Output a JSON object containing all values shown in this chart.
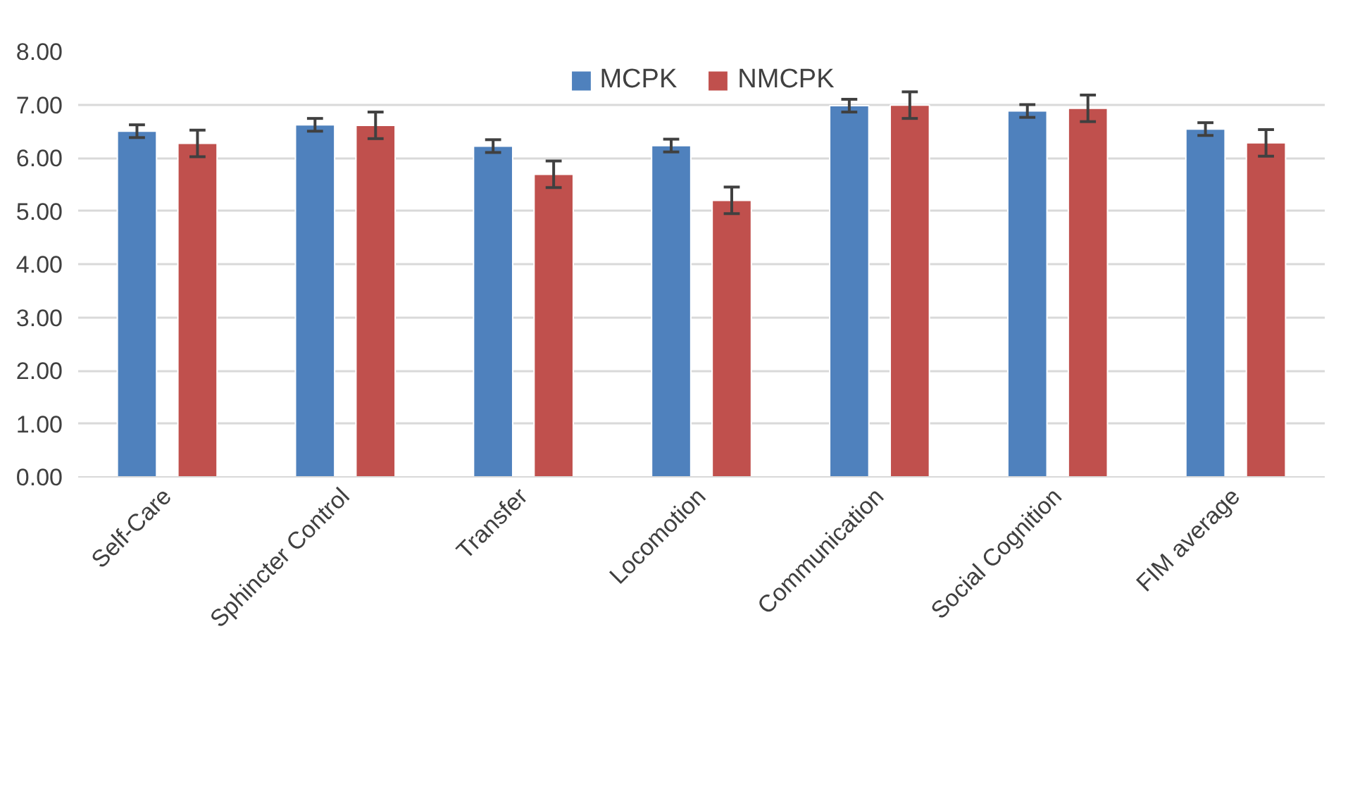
{
  "chart_data": {
    "type": "bar",
    "categories": [
      "Self-Care",
      "Sphincter Control",
      "Transfer",
      "Locomotion",
      "Communication",
      "Social Cognition",
      "FIM average"
    ],
    "series": [
      {
        "name": "MCPK",
        "color": "#4f81bd",
        "values": [
          6.5,
          6.62,
          6.22,
          6.23,
          6.98,
          6.88,
          6.54
        ],
        "errors": [
          0.12,
          0.12,
          0.12,
          0.12,
          0.12,
          0.12,
          0.12
        ]
      },
      {
        "name": "NMCPK",
        "color": "#c0504d",
        "values": [
          6.27,
          6.61,
          5.69,
          5.2,
          6.99,
          6.93,
          6.28
        ],
        "errors": [
          0.25,
          0.25,
          0.25,
          0.25,
          0.25,
          0.25,
          0.25
        ]
      }
    ],
    "ylim": [
      0,
      8
    ],
    "yticks": [
      {
        "value": 0,
        "label": "0.00"
      },
      {
        "value": 1,
        "label": "1.00"
      },
      {
        "value": 2,
        "label": "2.00"
      },
      {
        "value": 3,
        "label": "3.00"
      },
      {
        "value": 4,
        "label": "4.00"
      },
      {
        "value": 5,
        "label": "5.00"
      },
      {
        "value": 6,
        "label": "6.00"
      },
      {
        "value": 7,
        "label": "7.00"
      },
      {
        "value": 8,
        "label": "8.00"
      }
    ],
    "grid": "y",
    "legend": "top"
  }
}
